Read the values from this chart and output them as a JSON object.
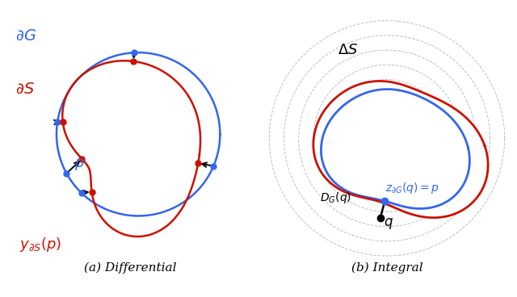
{
  "fig_width": 6.4,
  "fig_height": 3.68,
  "dpi": 100,
  "blue_color": "#3366ee",
  "red_color": "#cc1100",
  "caption_a": "(a) Differential",
  "caption_b": "(b) Integral"
}
